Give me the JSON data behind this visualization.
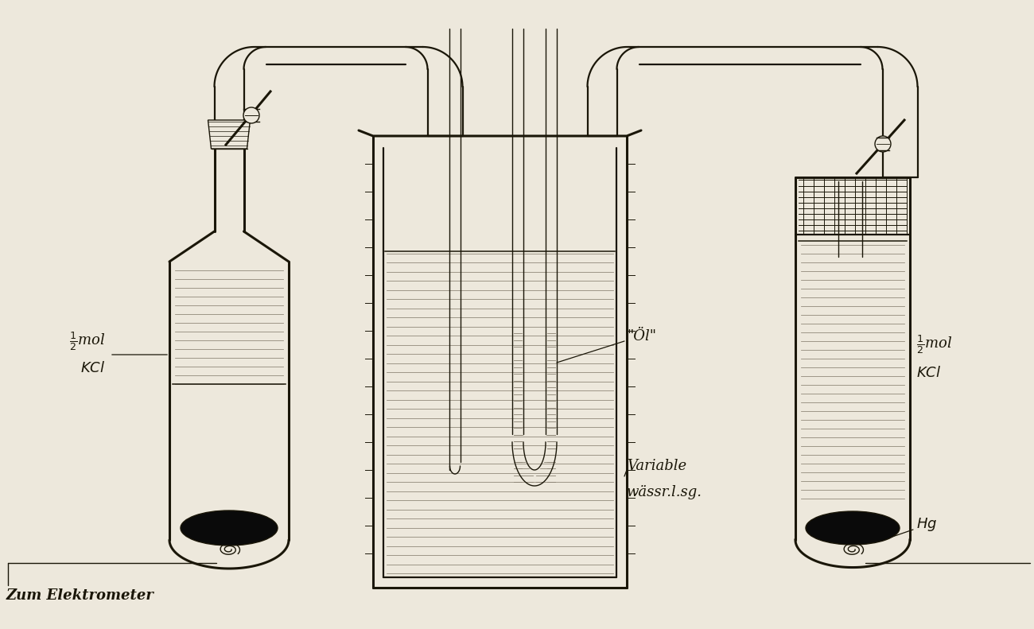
{
  "bg_color": "#ede8dc",
  "line_color": "#1a1608",
  "hatch_color": "#888070",
  "fill_dark": "#0a0a0a",
  "label_kcl_left_line1": "\\frac{1}{2}mol",
  "label_kcl_left_line2": "KCl",
  "label_kcl_right_line1": "\\frac{1}{2}mol",
  "label_kcl_right_line2": "KCl",
  "label_oil": "„Öl“",
  "label_variable_line1": "Variable",
  "label_variable_line2": "wässr.l.sg.",
  "label_hg": "Hg",
  "label_elektrometer": "Zum Elektrometer",
  "font_size": 13
}
